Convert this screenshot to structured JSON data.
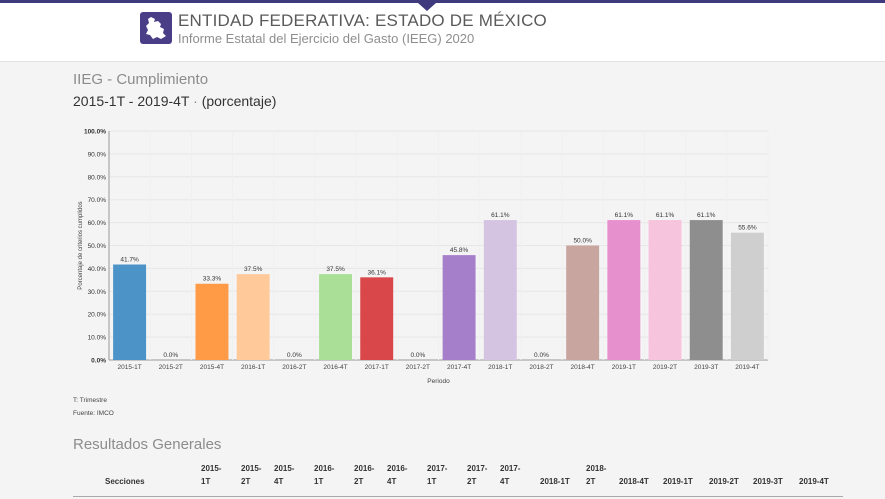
{
  "header": {
    "title": "ENTIDAD FEDERATIVA: ESTADO DE MÉXICO",
    "subtitle": "Informe Estatal del Ejercicio del Gasto (IEEG) 2020",
    "logo_icon": "state-map-icon",
    "accent_color": "#3f3a7e"
  },
  "section": {
    "title": "IIEG - Cumplimiento",
    "subtitle_range": "2015-1T - 2019-4T",
    "subtitle_dot": " · ",
    "subtitle_unit": "(porcentaje)"
  },
  "chart_data": {
    "type": "bar",
    "categories": [
      "2015-1T",
      "2015-2T",
      "2015-4T",
      "2016-1T",
      "2016-2T",
      "2016-4T",
      "2017-1T",
      "2017-2T",
      "2017-4T",
      "2018-1T",
      "2018-2T",
      "2018-4T",
      "2019-1T",
      "2019-2T",
      "2019-3T",
      "2019-4T"
    ],
    "values": [
      41.7,
      0.0,
      33.3,
      37.5,
      0.0,
      37.5,
      36.1,
      0.0,
      45.8,
      61.1,
      0.0,
      50.0,
      61.1,
      61.1,
      61.1,
      55.6
    ],
    "data_labels": [
      "41.7%",
      "0.0%",
      "33.3%",
      "37.5%",
      "0.0%",
      "37.5%",
      "36.1%",
      "0.0%",
      "45.8%",
      "61.1%",
      "0.0%",
      "50.0%",
      "61.1%",
      "61.1%",
      "61.1%",
      "55.6%"
    ],
    "colors": [
      "#4c93c7",
      "#4c93c7",
      "#ff9b47",
      "#ffc99a",
      "#ffc99a",
      "#a9df96",
      "#d9474a",
      "#d9474a",
      "#a67fcb",
      "#d5c3e2",
      "#d5c3e2",
      "#c8a59e",
      "#e690cd",
      "#f6c4dd",
      "#8e8e8e",
      "#cfcfcf"
    ],
    "xlabel": "Periodo",
    "ylabel": "Porcentaje de criterios cumplidos",
    "yticks": [
      "100.0%",
      "90.0%",
      "80.0%",
      "70.0%",
      "60.0%",
      "50.0%",
      "40.0%",
      "30.0%",
      "20.0%",
      "10.0%",
      "0.0%"
    ],
    "ylim": [
      0,
      100
    ],
    "grid": true
  },
  "notes": {
    "trimestre": "T: Trimestre",
    "fuente": "Fuente: IMCO"
  },
  "results": {
    "title": "Resultados Generales",
    "columns": [
      "Secciones",
      "2015-\n1T",
      "2015-\n2T",
      "2015-\n4T",
      "2016-\n1T",
      "2016-\n2T",
      "2016-\n4T",
      "2017-\n1T",
      "2017-\n2T",
      "2017-\n4T",
      "2018-1T",
      "2018-\n2T",
      "2018-4T",
      "2019-1T",
      "2019-2T",
      "2019-3T",
      "2019-4T"
    ]
  }
}
